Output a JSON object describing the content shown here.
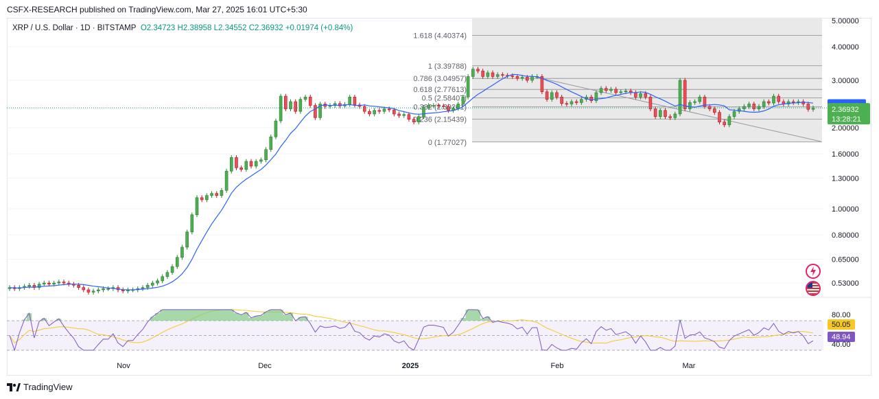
{
  "publisher_line": "CSFX-RESEARCH published on TradingView.com, Mar 27, 2025 16:01 UTC+5:30",
  "legend": {
    "symbol": "XRP / U.S. Dollar · 1D · BITSTAMP",
    "ohlc": "O2.34723  H2.38958  L2.34552  C2.36932  +0.01974 (+0.84%)"
  },
  "branding": "TradingView",
  "colors": {
    "up": "#089981",
    "up_body": "#4caf50",
    "down": "#f23645",
    "down_body": "#e84f5c",
    "ma": "#2962ff",
    "rsi": "#7e57c2",
    "rsi_ma": "#f7c825",
    "fib_band": "#e9e9ea",
    "price_label": "#4caf50",
    "ma_label": "#2962ff"
  },
  "icons": [
    "flash-icon",
    "us-flag-icon",
    "tradingview-logo-icon"
  ],
  "chart_data": {
    "type": "candlestick",
    "scale": "log",
    "y_ticks": [
      "5.00000",
      "4.00000",
      "3.00000",
      "2.00000",
      "1.60000",
      "1.30000",
      "1.00000",
      "0.80000",
      "0.65000",
      "0.53000"
    ],
    "x_ticks": [
      "Nov",
      "Dec",
      "2025",
      "Feb",
      "Mar"
    ],
    "current_price": "2.36932",
    "countdown": "13:28:21",
    "ma_value": "2.42043",
    "fibonacci": [
      {
        "label": "1.618 (4.40374)",
        "price": 4.40374
      },
      {
        "label": "1 (3.39788)",
        "price": 3.39788
      },
      {
        "label": "0.786 (3.04957)",
        "price": 3.04957
      },
      {
        "label": "0.618 (2.77613)",
        "price": 2.77613
      },
      {
        "label": "0.5 (2.58407)",
        "price": 2.58407
      },
      {
        "label": "0.382 (2.39201)",
        "price": 2.39201
      },
      {
        "label": "0.236 (2.15439)",
        "price": 2.15439
      },
      {
        "label": "0 (1.77027)",
        "price": 1.77027
      }
    ],
    "closes": [
      0.51,
      0.505,
      0.51,
      0.515,
      0.52,
      0.51,
      0.525,
      0.53,
      0.525,
      0.53,
      0.535,
      0.53,
      0.525,
      0.52,
      0.51,
      0.5,
      0.49,
      0.495,
      0.5,
      0.505,
      0.505,
      0.51,
      0.5,
      0.495,
      0.5,
      0.5,
      0.505,
      0.51,
      0.52,
      0.53,
      0.54,
      0.56,
      0.58,
      0.61,
      0.66,
      0.72,
      0.82,
      0.95,
      1.1,
      1.08,
      1.12,
      1.14,
      1.12,
      1.17,
      1.38,
      1.55,
      1.42,
      1.4,
      1.5,
      1.44,
      1.5,
      1.52,
      1.66,
      1.85,
      2.12,
      2.62,
      2.35,
      2.5,
      2.3,
      2.55,
      2.6,
      2.42,
      2.18,
      2.45,
      2.4,
      2.42,
      2.46,
      2.41,
      2.44,
      2.6,
      2.43,
      2.4,
      2.3,
      2.25,
      2.32,
      2.3,
      2.35,
      2.33,
      2.25,
      2.22,
      2.24,
      2.15,
      2.1,
      2.2,
      2.38,
      2.42,
      2.42,
      2.41,
      2.4,
      2.32,
      2.36,
      2.45,
      2.6,
      3.1,
      3.3,
      3.25,
      3.1,
      3.2,
      3.1,
      3.15,
      3.13,
      3.12,
      3.1,
      3.05,
      3.08,
      3.0,
      3.1,
      3.1,
      2.72,
      2.55,
      2.7,
      2.6,
      2.46,
      2.45,
      2.5,
      2.48,
      2.55,
      2.6,
      2.52,
      2.7,
      2.8,
      2.75,
      2.78,
      2.7,
      2.72,
      2.74,
      2.7,
      2.6,
      2.68,
      2.6,
      2.35,
      2.2,
      2.32,
      2.2,
      2.18,
      2.25,
      3.0,
      2.35,
      2.48,
      2.5,
      2.6,
      2.4,
      2.35,
      2.28,
      2.1,
      2.05,
      2.2,
      2.3,
      2.35,
      2.4,
      2.45,
      2.35,
      2.4,
      2.5,
      2.47,
      2.62,
      2.5,
      2.45,
      2.5,
      2.48,
      2.5,
      2.45,
      2.34,
      2.37
    ],
    "rsi": {
      "levels": [
        "80.00",
        "50.05",
        "48.94",
        "40.00"
      ],
      "rsi_value": "48.94",
      "rsi_ma_value": "50.05",
      "overbought": 70,
      "oversold": 30
    }
  }
}
